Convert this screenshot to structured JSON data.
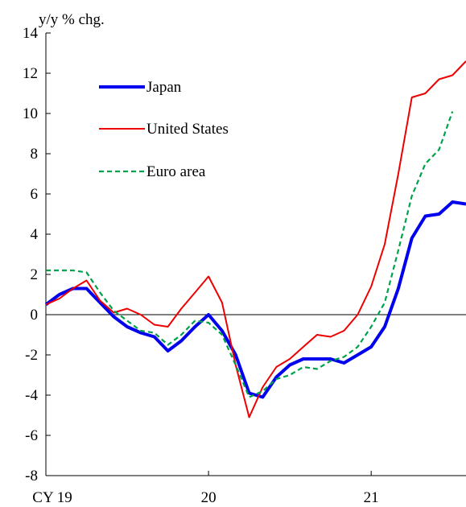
{
  "chart_data": {
    "type": "line",
    "ylabel": "y/y % chg.",
    "ylim": [
      -8,
      14
    ],
    "yticks": [
      -8,
      -6,
      -4,
      -2,
      0,
      2,
      4,
      6,
      8,
      10,
      12,
      14
    ],
    "xticks": [
      {
        "label": "CY 19",
        "x": 2019.0
      },
      {
        "label": "20",
        "x": 2020.0
      },
      {
        "label": "21",
        "x": 2021.0
      }
    ],
    "xlim": [
      2019.0,
      2021.583
    ],
    "legend_position": "upper-left",
    "series": [
      {
        "name": "Japan",
        "color": "#0000ee",
        "style": "solid-thick",
        "x": [
          2019.0,
          2019.083,
          2019.167,
          2019.25,
          2019.333,
          2019.417,
          2019.5,
          2019.583,
          2019.667,
          2019.75,
          2019.833,
          2019.917,
          2020.0,
          2020.083,
          2020.167,
          2020.25,
          2020.333,
          2020.417,
          2020.5,
          2020.583,
          2020.667,
          2020.75,
          2020.833,
          2020.917,
          2021.0,
          2021.083,
          2021.167,
          2021.25,
          2021.333,
          2021.417,
          2021.5,
          2021.583
        ],
        "values": [
          0.5,
          1.0,
          1.3,
          1.3,
          0.6,
          -0.1,
          -0.6,
          -0.9,
          -1.1,
          -1.8,
          -1.3,
          -0.6,
          0.0,
          -0.8,
          -2.0,
          -3.9,
          -4.1,
          -3.1,
          -2.5,
          -2.2,
          -2.2,
          -2.2,
          -2.4,
          -2.0,
          -1.6,
          -0.6,
          1.3,
          3.8,
          4.9,
          5.0,
          5.6,
          5.5
        ]
      },
      {
        "name": "United States",
        "color": "#ee0000",
        "style": "solid",
        "x": [
          2019.0,
          2019.083,
          2019.167,
          2019.25,
          2019.333,
          2019.417,
          2019.5,
          2019.583,
          2019.667,
          2019.75,
          2019.833,
          2019.917,
          2020.0,
          2020.083,
          2020.167,
          2020.25,
          2020.333,
          2020.417,
          2020.5,
          2020.583,
          2020.667,
          2020.75,
          2020.833,
          2020.917,
          2021.0,
          2021.083,
          2021.167,
          2021.25,
          2021.333,
          2021.417,
          2021.5,
          2021.583
        ],
        "values": [
          0.5,
          0.8,
          1.3,
          1.7,
          0.7,
          0.1,
          0.3,
          0.0,
          -0.5,
          -0.6,
          0.3,
          1.1,
          1.9,
          0.6,
          -2.5,
          -5.1,
          -3.6,
          -2.6,
          -2.2,
          -1.6,
          -1.0,
          -1.1,
          -0.8,
          0.0,
          1.4,
          3.5,
          7.0,
          10.8,
          11.0,
          11.7,
          11.9,
          12.6
        ]
      },
      {
        "name": "Euro area",
        "color": "#00a14b",
        "style": "dashed",
        "x": [
          2019.0,
          2019.083,
          2019.167,
          2019.25,
          2019.333,
          2019.417,
          2019.5,
          2019.583,
          2019.667,
          2019.75,
          2019.833,
          2019.917,
          2020.0,
          2020.083,
          2020.167,
          2020.25,
          2020.333,
          2020.417,
          2020.5,
          2020.583,
          2020.667,
          2020.75,
          2020.833,
          2020.917,
          2021.0,
          2021.083,
          2021.167,
          2021.25,
          2021.333,
          2021.417,
          2021.5
        ],
        "values": [
          2.2,
          2.2,
          2.2,
          2.1,
          1.1,
          0.2,
          -0.3,
          -0.8,
          -0.9,
          -1.5,
          -1.0,
          -0.3,
          -0.4,
          -1.0,
          -2.5,
          -4.1,
          -3.8,
          -3.2,
          -3.0,
          -2.6,
          -2.7,
          -2.3,
          -2.1,
          -1.6,
          -0.6,
          0.6,
          3.2,
          5.9,
          7.5,
          8.2,
          10.1
        ]
      }
    ]
  }
}
